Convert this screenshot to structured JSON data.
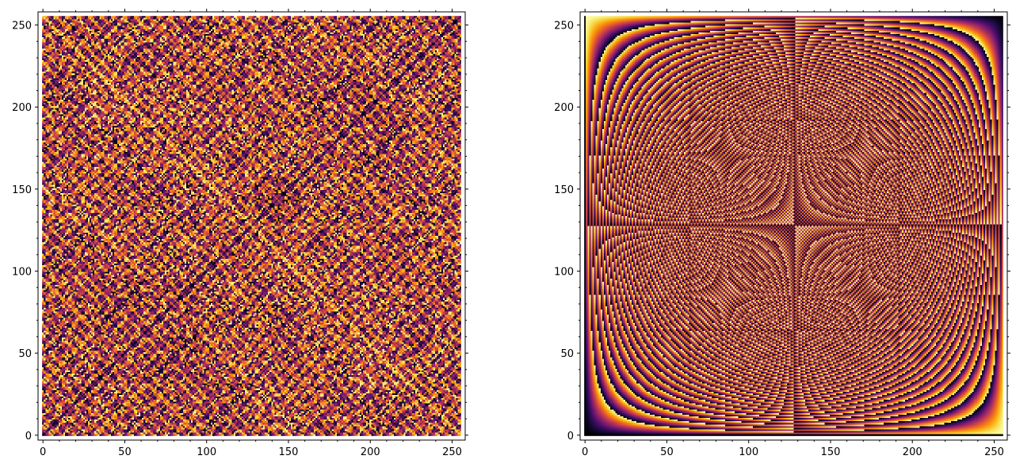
{
  "chart_data": [
    {
      "type": "heatmap",
      "pattern": "xor-mod",
      "description_note": "",
      "resolution": 256,
      "x_range": [
        0,
        255
      ],
      "y_range": [
        0,
        255
      ],
      "xlim": [
        -3,
        258
      ],
      "ylim": [
        -3,
        258
      ],
      "x_ticks": [
        0,
        50,
        100,
        150,
        200,
        250
      ],
      "y_ticks": [
        0,
        50,
        100,
        150,
        200,
        250
      ],
      "x_tick_labels": [
        "0",
        "50",
        "100",
        "150",
        "200",
        "250"
      ],
      "y_tick_labels": [
        "0",
        "50",
        "100",
        "150",
        "200",
        "250"
      ],
      "x_minor_step": 10,
      "y_minor_step": 10,
      "colormap": "inferno",
      "origin": "lower",
      "grid": false,
      "title": "",
      "xlabel": "",
      "ylabel": ""
    },
    {
      "type": "heatmap",
      "pattern": "xy-mod",
      "description_note": "",
      "resolution": 256,
      "x_range": [
        0,
        255
      ],
      "y_range": [
        0,
        255
      ],
      "xlim": [
        -3,
        258
      ],
      "ylim": [
        -3,
        258
      ],
      "x_ticks": [
        0,
        50,
        100,
        150,
        200,
        250
      ],
      "y_ticks": [
        0,
        50,
        100,
        150,
        200,
        250
      ],
      "x_tick_labels": [
        "0",
        "50",
        "100",
        "150",
        "200",
        "250"
      ],
      "y_tick_labels": [
        "0",
        "50",
        "100",
        "150",
        "200",
        "250"
      ],
      "x_minor_step": 10,
      "y_minor_step": 10,
      "colormap": "inferno",
      "origin": "lower",
      "grid": false,
      "title": "",
      "xlabel": "",
      "ylabel": ""
    }
  ],
  "colormap_stops": [
    "#000004",
    "#1b0c41",
    "#4a0c6b",
    "#781c6d",
    "#a52c60",
    "#cf4446",
    "#ed6925",
    "#fb9b06",
    "#f7d13d",
    "#fcffa4"
  ]
}
